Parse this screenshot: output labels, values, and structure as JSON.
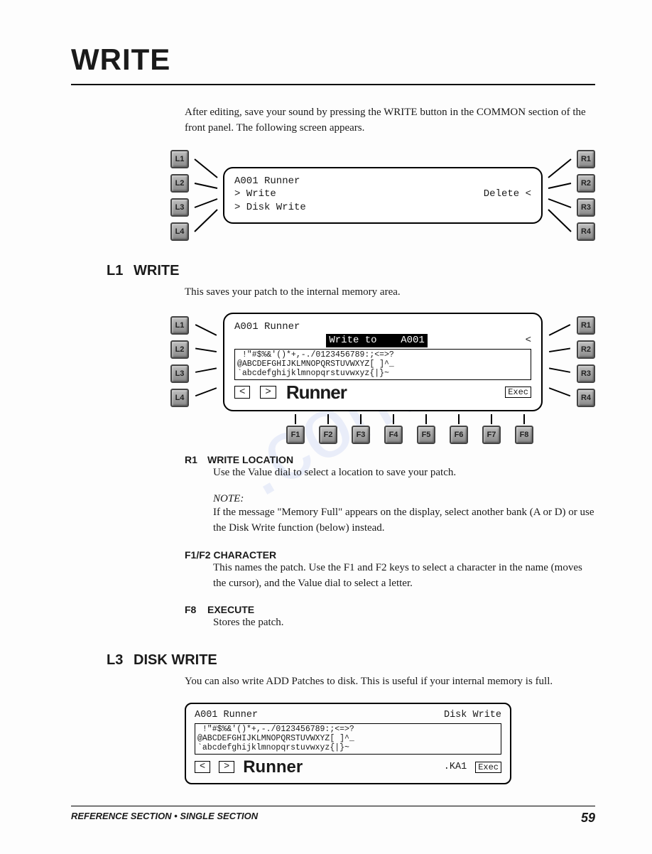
{
  "title": "WRITE",
  "intro": "After editing, save your sound by pressing the WRITE button in the COMMON section of the front panel. The following screen appears.",
  "screen1": {
    "title": "A001 Runner",
    "row2_left": "> Write",
    "row2_right": "Delete <",
    "row3_left": "> Disk Write",
    "left_buttons": [
      "L1",
      "L2",
      "L3",
      "L4"
    ],
    "right_buttons": [
      "R1",
      "R2",
      "R3",
      "R4"
    ]
  },
  "section_l1": {
    "prefix": "L1",
    "heading": "WRITE",
    "text": "This saves your patch to the internal memory area."
  },
  "screen2": {
    "title": "A001 Runner",
    "write_to": "Write to    A001",
    "charset1": " !\"#$%&'()*+,-./0123456789:;<=>?",
    "charset2": "@ABCDEFGHIJKLMNOPQRSTUVWXYZ[ ]^_",
    "charset3": "`abcdefghijklmnopqrstuvwxyz{|}~",
    "big_name": "Runner",
    "nav_left": "<",
    "nav_right": ">",
    "exec": "Exec",
    "left_buttons": [
      "L1",
      "L2",
      "L3",
      "L4"
    ],
    "right_buttons": [
      "R1",
      "R2",
      "R3",
      "R4"
    ],
    "fkeys": [
      "F1",
      "F2",
      "F3",
      "F4",
      "F5",
      "F6",
      "F7",
      "F8"
    ]
  },
  "r1": {
    "prefix": "R1",
    "heading": "WRITE LOCATION",
    "text": "Use the Value dial to select a location to save your patch.",
    "note_label": "NOTE:",
    "note": "If the message \"Memory Full\" appears on the display, select another bank (A or D) or use the Disk Write function (below) instead."
  },
  "f1f2": {
    "heading": "F1/F2 CHARACTER",
    "text": "This names the patch. Use the F1 and F2 keys to select a character in the name (moves the cursor), and the Value dial to select a letter."
  },
  "f8": {
    "prefix": "F8",
    "heading": "EXECUTE",
    "text": "Stores the patch."
  },
  "section_l3": {
    "prefix": "L3",
    "heading": "DISK WRITE",
    "text": "You can also write ADD Patches to disk. This is useful if your internal memory is full."
  },
  "screen3": {
    "title": "A001 Runner",
    "right_title": "Disk Write",
    "charset1": " !\"#$%&'()*+,-./0123456789:;<=>?",
    "charset2": "@ABCDEFGHIJKLMNOPQRSTUVWXYZ[ ]^_",
    "charset3": "`abcdefghijklmnopqrstuvwxyz{|}~",
    "big_name": "Runner",
    "nav_left": "<",
    "nav_right": ">",
    "ext": ".KA1",
    "exec": "Exec"
  },
  "footer": {
    "left": "REFERENCE SECTION • SINGLE SECTION",
    "page": "59"
  },
  "colors": {
    "text": "#1a1a1a",
    "rule": "#000000",
    "button_grad_top": "#bdbdbd",
    "button_grad_bot": "#8a8a8a",
    "watermark": "rgba(90,120,220,0.12)"
  }
}
